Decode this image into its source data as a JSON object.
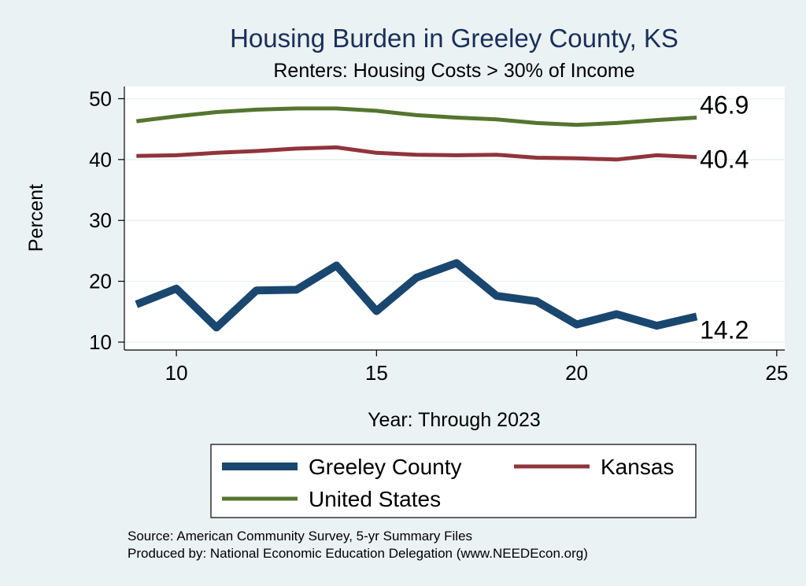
{
  "chart_data": {
    "type": "line",
    "title": "Housing Burden in Greeley County, KS",
    "subtitle": "Renters: Housing Costs > 30% of Income",
    "xlabel": "Year: Through 2023",
    "ylabel": "Percent",
    "xlim": [
      8.7,
      25.2
    ],
    "ylim": [
      8.7,
      52
    ],
    "x_ticks": [
      10,
      15,
      20,
      25
    ],
    "y_ticks": [
      10,
      20,
      30,
      40,
      50
    ],
    "grid": true,
    "legend_position": "bottom",
    "x": [
      9,
      10,
      11,
      12,
      13,
      14,
      15,
      16,
      17,
      18,
      19,
      20,
      21,
      22,
      23
    ],
    "series": [
      {
        "name": "Greeley County",
        "color": "#1a476f",
        "width": 10,
        "values": [
          16.2,
          18.8,
          12.4,
          18.5,
          18.6,
          22.6,
          15.1,
          20.6,
          23.0,
          17.6,
          16.7,
          12.9,
          14.6,
          12.7,
          14.2
        ],
        "end_label": "14.2"
      },
      {
        "name": "Kansas",
        "color": "#90353b",
        "width": 5,
        "values": [
          40.6,
          40.7,
          41.1,
          41.4,
          41.8,
          42.0,
          41.1,
          40.8,
          40.7,
          40.8,
          40.3,
          40.2,
          40.0,
          40.7,
          40.4
        ],
        "end_label": "40.4"
      },
      {
        "name": "United States",
        "color": "#55752f",
        "width": 5,
        "values": [
          46.3,
          47.1,
          47.8,
          48.2,
          48.4,
          48.4,
          48.0,
          47.3,
          46.9,
          46.6,
          46.0,
          45.7,
          46.0,
          46.5,
          46.9
        ],
        "end_label": "46.9"
      }
    ]
  },
  "notes": {
    "source": "Source: American Community Survey, 5-yr Summary Files",
    "produced": "Produced by: National Economic Education Delegation (www.NEEDEcon.org)"
  }
}
